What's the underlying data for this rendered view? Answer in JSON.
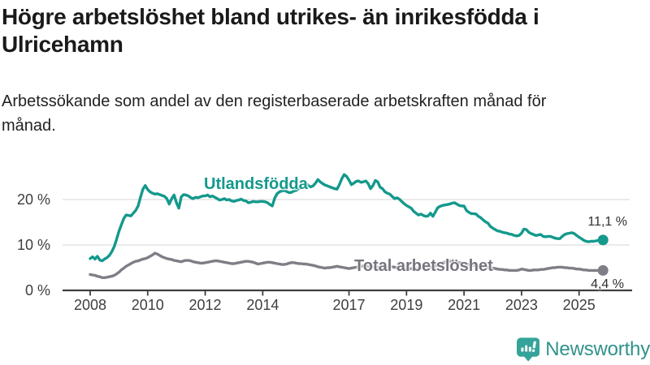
{
  "header": {
    "title": "Högre arbetslöshet bland utrikes- än inrikesfödda i Ulricehamn",
    "subtitle": "Arbetssökande som andel av den registerbaserade arbetskraften månad för månad."
  },
  "chart_data": {
    "type": "line",
    "title": "Högre arbetslöshet bland utrikes- än inrikesfödda i Ulricehamn",
    "xlabel": "",
    "ylabel": "",
    "unit": "%",
    "grid": "horizontal",
    "legend_position": "inline-labels-on-lines",
    "xlim": [
      2007.04,
      2026.76
    ],
    "ylim": [
      0,
      25.9
    ],
    "x_ticks": [
      {
        "year": 2008,
        "label": "2008"
      },
      {
        "year": 2010,
        "label": "2010"
      },
      {
        "year": 2012,
        "label": "2012"
      },
      {
        "year": 2014,
        "label": "2014"
      },
      {
        "year": 2017,
        "label": "2017"
      },
      {
        "year": 2019,
        "label": "2019"
      },
      {
        "year": 2021,
        "label": "2021"
      },
      {
        "year": 2023,
        "label": "2023"
      },
      {
        "year": 2025,
        "label": "2025"
      }
    ],
    "y_ticks": [
      {
        "value": 0,
        "label": "0 %"
      },
      {
        "value": 10,
        "label": "10 %"
      },
      {
        "value": 20,
        "label": "20 %"
      }
    ],
    "series": [
      {
        "name": "Utlandsfödda",
        "color": "#14998c",
        "end_label": "11,1 %",
        "end_value": 11.1,
        "start_year": 2008.0,
        "step_years": 0.08333,
        "values": [
          7.0,
          7.4,
          6.9,
          7.5,
          6.7,
          6.5,
          6.9,
          7.2,
          7.7,
          8.5,
          9.6,
          11.2,
          13.0,
          14.4,
          15.8,
          16.6,
          16.5,
          16.4,
          17.0,
          17.6,
          18.6,
          20.5,
          22.3,
          23.1,
          22.2,
          21.7,
          21.4,
          21.2,
          21.3,
          21.1,
          20.9,
          20.7,
          20.2,
          19.0,
          20.2,
          21.0,
          19.3,
          18.1,
          20.6,
          21.1,
          21.0,
          20.8,
          20.4,
          20.2,
          20.5,
          20.4,
          20.6,
          20.8,
          20.8,
          21.0,
          20.6,
          20.8,
          20.5,
          20.2,
          19.9,
          20.0,
          20.2,
          19.9,
          20.0,
          19.7,
          19.6,
          19.8,
          19.9,
          20.1,
          19.8,
          19.7,
          19.3,
          19.4,
          19.6,
          19.5,
          19.5,
          19.6,
          19.6,
          19.5,
          19.3,
          18.9,
          18.6,
          20.3,
          21.3,
          21.7,
          21.9,
          22.0,
          21.8,
          21.5,
          21.6,
          21.9,
          22.0,
          22.4,
          22.9,
          23.2,
          23.6,
          23.1,
          22.8,
          23.0,
          23.6,
          24.4,
          23.9,
          23.5,
          23.2,
          23.0,
          22.8,
          22.6,
          22.4,
          22.3,
          23.3,
          24.6,
          25.5,
          25.1,
          24.3,
          23.3,
          23.6,
          24.0,
          24.1,
          23.8,
          23.9,
          24.1,
          23.5,
          22.4,
          23.1,
          24.2,
          23.9,
          22.7,
          22.4,
          21.7,
          21.4,
          21.2,
          20.7,
          20.2,
          20.4,
          20.1,
          19.6,
          19.1,
          18.7,
          18.4,
          18.1,
          17.4,
          17.0,
          16.6,
          16.8,
          16.5,
          16.3,
          16.4,
          17.0,
          16.3,
          17.2,
          18.2,
          18.5,
          18.7,
          18.8,
          18.9,
          19.0,
          19.2,
          19.3,
          19.0,
          18.7,
          18.6,
          18.6,
          17.6,
          17.2,
          16.9,
          16.9,
          16.8,
          16.3,
          16.0,
          15.5,
          15.1,
          14.8,
          14.1,
          13.7,
          13.4,
          13.1,
          13.0,
          12.8,
          12.7,
          12.6,
          12.4,
          12.3,
          12.1,
          12.0,
          12.1,
          12.6,
          13.5,
          13.4,
          12.8,
          12.5,
          12.3,
          12.1,
          12.2,
          12.3,
          11.9,
          11.8,
          11.9,
          11.9,
          11.7,
          11.5,
          11.4,
          11.4,
          11.9,
          12.3,
          12.5,
          12.6,
          12.7,
          12.5,
          12.1,
          11.7,
          11.4,
          11.0,
          10.8,
          10.7,
          10.8,
          10.8,
          10.9,
          11.0,
          11.1,
          11.1
        ]
      },
      {
        "name": "Total arbetslöshet",
        "color": "#7e7e86",
        "end_label": "4,4 %",
        "end_value": 4.4,
        "start_year": 2008.0,
        "step_years": 0.08333,
        "values": [
          3.5,
          3.4,
          3.3,
          3.1,
          3.0,
          2.8,
          2.8,
          2.9,
          3.0,
          3.1,
          3.3,
          3.6,
          4.0,
          4.5,
          4.9,
          5.3,
          5.6,
          5.9,
          6.2,
          6.4,
          6.5,
          6.7,
          6.9,
          7.0,
          7.2,
          7.5,
          7.8,
          8.2,
          8.0,
          7.7,
          7.4,
          7.2,
          7.0,
          6.9,
          6.8,
          6.6,
          6.5,
          6.4,
          6.3,
          6.5,
          6.6,
          6.6,
          6.5,
          6.3,
          6.2,
          6.1,
          6.0,
          6.0,
          6.1,
          6.2,
          6.3,
          6.4,
          6.5,
          6.5,
          6.4,
          6.3,
          6.2,
          6.1,
          6.0,
          5.9,
          5.9,
          6.0,
          6.1,
          6.2,
          6.3,
          6.4,
          6.4,
          6.3,
          6.2,
          6.0,
          5.8,
          5.9,
          6.0,
          6.1,
          6.2,
          6.2,
          6.1,
          6.0,
          5.9,
          5.8,
          5.7,
          5.7,
          5.8,
          6.0,
          6.1,
          6.1,
          6.0,
          5.9,
          5.9,
          5.8,
          5.8,
          5.7,
          5.6,
          5.5,
          5.4,
          5.2,
          5.1,
          5.0,
          4.9,
          5.0,
          5.0,
          5.1,
          5.2,
          5.3,
          5.2,
          5.1,
          5.0,
          4.9,
          4.8,
          4.9,
          5.0,
          5.1,
          5.2,
          5.3,
          5.4,
          5.4,
          5.3,
          5.2,
          5.2,
          5.1,
          5.1,
          5.0,
          5.0,
          5.1,
          5.1,
          5.2,
          5.2,
          5.1,
          5.0,
          4.9,
          4.8,
          4.8,
          4.7,
          4.7,
          4.8,
          4.8,
          4.8,
          4.9,
          4.9,
          5.0,
          5.0,
          5.1,
          5.1,
          5.2,
          5.4,
          5.7,
          5.9,
          6.1,
          6.2,
          6.3,
          6.4,
          6.4,
          6.3,
          6.2,
          6.1,
          6.0,
          5.9,
          5.8,
          5.7,
          5.6,
          5.5,
          5.4,
          5.3,
          5.2,
          5.1,
          5.0,
          5.0,
          4.9,
          4.9,
          4.8,
          4.7,
          4.6,
          4.6,
          4.5,
          4.5,
          4.4,
          4.4,
          4.4,
          4.4,
          4.5,
          4.7,
          4.6,
          4.5,
          4.4,
          4.4,
          4.5,
          4.5,
          4.5,
          4.6,
          4.6,
          4.7,
          4.8,
          4.9,
          5.0,
          5.0,
          5.1,
          5.1,
          5.1,
          5.0,
          5.0,
          4.9,
          4.9,
          4.8,
          4.7,
          4.7,
          4.6,
          4.5,
          4.5,
          4.4,
          4.4,
          4.4,
          4.4,
          4.4,
          4.4,
          4.4
        ]
      }
    ],
    "colors": {
      "gridline": "#dedede",
      "axis_line": "#3f3f3f",
      "axis_text": "#3e3e3e"
    }
  },
  "footer": {
    "brand": "Newsworthy",
    "logo_icon": "bar-chart-speech-bubble-icon",
    "brand_color": "#31918b"
  }
}
